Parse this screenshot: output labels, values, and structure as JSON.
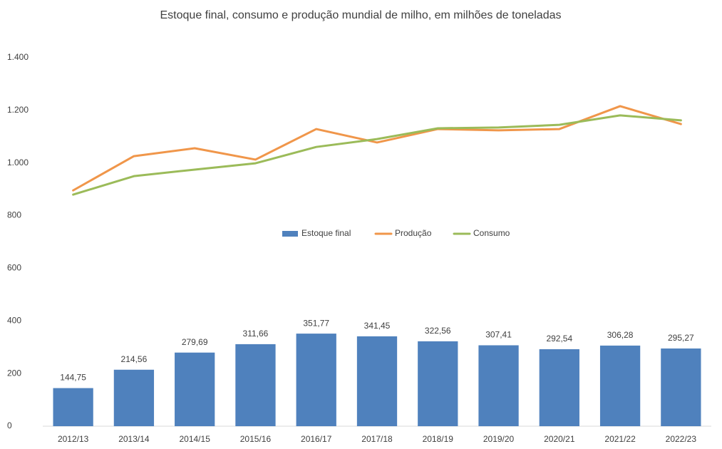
{
  "chart_data": {
    "type": "bar",
    "title": "Estoque final, consumo e produção mundial de milho, em milhões de toneladas",
    "categories": [
      "2012/13",
      "2013/14",
      "2014/15",
      "2015/16",
      "2016/17",
      "2017/18",
      "2018/19",
      "2019/20",
      "2020/21",
      "2021/22",
      "2022/23"
    ],
    "series": [
      {
        "name": "Estoque final",
        "type": "bar",
        "color": "#4f81bd",
        "values": [
          144.75,
          214.56,
          279.69,
          311.66,
          351.77,
          341.45,
          322.56,
          307.41,
          292.54,
          306.28,
          295.27
        ],
        "value_labels": [
          "144,75",
          "214,56",
          "279,69",
          "311,66",
          "351,77",
          "341,45",
          "322,56",
          "307,41",
          "292,54",
          "306,28",
          "295,27"
        ]
      },
      {
        "name": "Produção",
        "type": "line",
        "color": "#f0964a",
        "values": [
          896,
          1026,
          1056,
          1013,
          1129,
          1078,
          1129,
          1124,
          1129,
          1216,
          1148
        ]
      },
      {
        "name": "Consumo",
        "type": "line",
        "color": "#9bbb59",
        "values": [
          880,
          950,
          975,
          999,
          1061,
          1091,
          1132,
          1135,
          1145,
          1181,
          1162
        ]
      }
    ],
    "ylim": [
      0,
      1400
    ],
    "yticks": [
      0,
      200,
      400,
      600,
      800,
      {
        "value": 1000,
        "label": "1.000"
      },
      {
        "value": 1200,
        "label": "1.200"
      },
      {
        "value": 1400,
        "label": "1.400"
      }
    ],
    "legend": "center",
    "grid": false
  }
}
